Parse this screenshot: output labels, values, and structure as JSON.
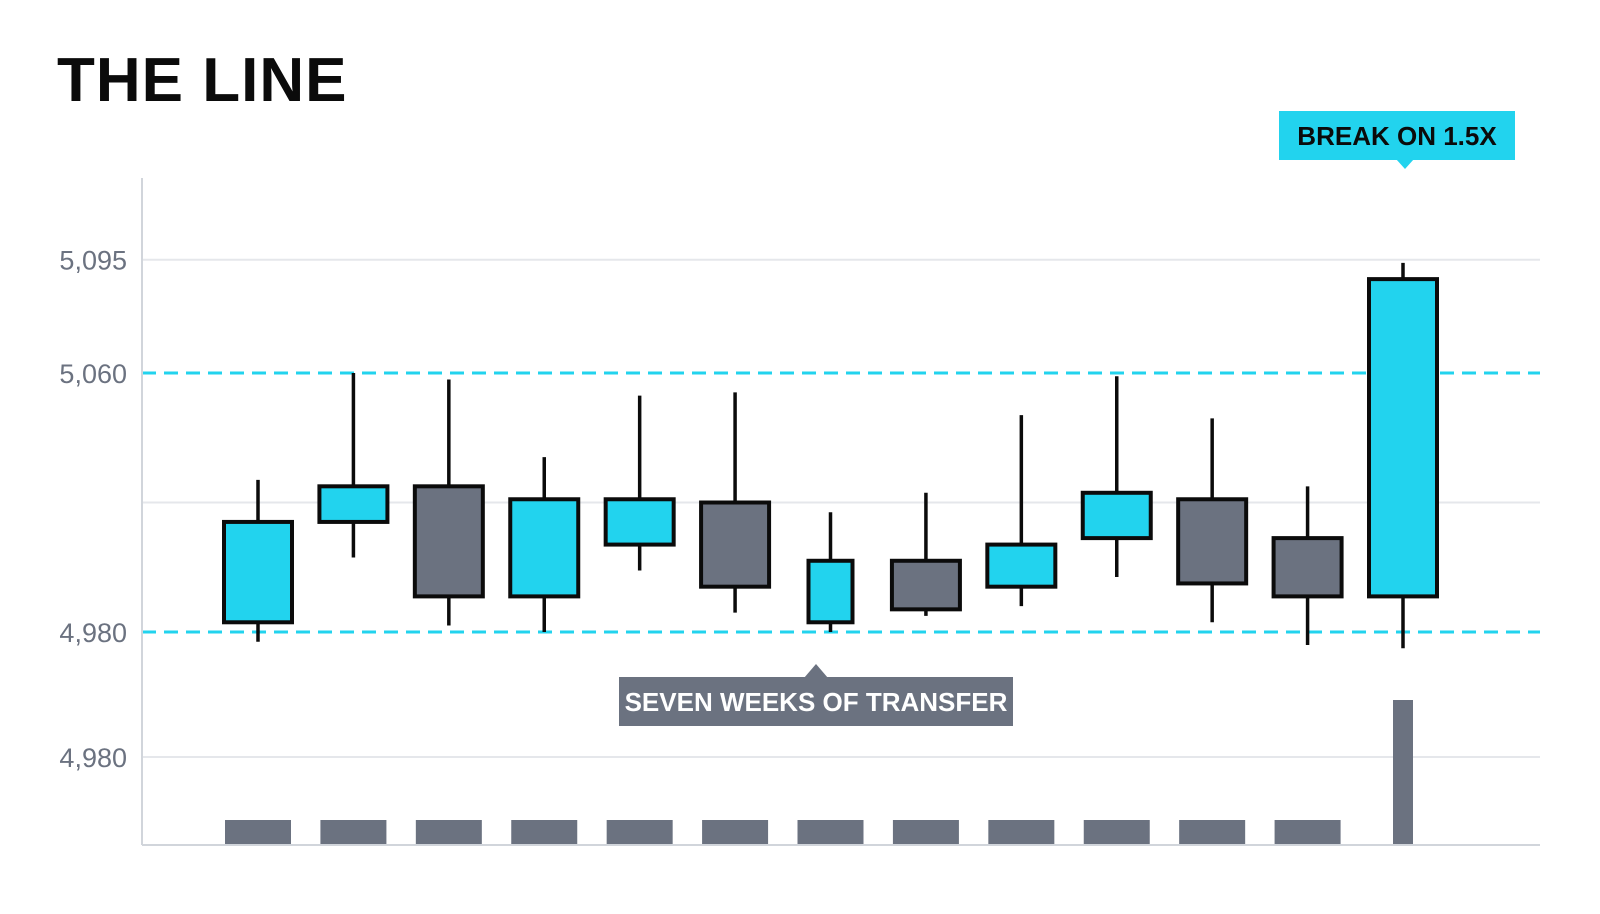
{
  "title": "THE LINE",
  "colors": {
    "up": "#22d3ee",
    "down": "#6b7280",
    "outline": "#0b0b0b",
    "grid": "#e5e7eb",
    "axis": "#d1d5db",
    "level_line": "#22d3ee",
    "volume": "#6b7280",
    "callout_top_bg": "#22d3ee",
    "callout_top_text": "#0b0b0b",
    "callout_bottom_bg": "#6b7280",
    "callout_bottom_text": "#ffffff"
  },
  "chart_data": {
    "type": "candlestick",
    "title": "THE LINE",
    "ylim": [
      4968,
      5098
    ],
    "y_ticks": [
      {
        "value": 5095,
        "label": "5,095"
      },
      {
        "value": 5060,
        "label": "5,060"
      },
      {
        "value": 4980,
        "label": "4,980"
      }
    ],
    "volume_axis_label": "4,980",
    "grid": true,
    "levels": [
      5060,
      4980
    ],
    "candles": [
      {
        "open": 4983,
        "high": 5027,
        "low": 4977,
        "close": 5014
      },
      {
        "open": 5014,
        "high": 5060,
        "low": 5003,
        "close": 5025
      },
      {
        "open": 5025,
        "high": 5058,
        "low": 4982,
        "close": 4991
      },
      {
        "open": 4991,
        "high": 5034,
        "low": 4980,
        "close": 5021
      },
      {
        "open": 5007,
        "high": 5053,
        "low": 4999,
        "close": 5021
      },
      {
        "open": 5020,
        "high": 5054,
        "low": 4986,
        "close": 4994
      },
      {
        "open": 4983,
        "high": 5017,
        "low": 4980,
        "close": 5002
      },
      {
        "open": 5002,
        "high": 5023,
        "low": 4985,
        "close": 4987
      },
      {
        "open": 4994,
        "high": 5047,
        "low": 4988,
        "close": 5007
      },
      {
        "open": 5009,
        "high": 5059,
        "low": 4997,
        "close": 5023
      },
      {
        "open": 5021,
        "high": 5046,
        "low": 4983,
        "close": 4995
      },
      {
        "open": 5009,
        "high": 5025,
        "low": 4976,
        "close": 4991
      },
      {
        "open": 4991,
        "high": 5094,
        "low": 4975,
        "close": 5089
      }
    ],
    "volume": [
      1,
      1,
      1,
      1,
      1,
      1,
      1,
      1,
      1,
      1,
      1,
      1,
      6
    ]
  },
  "annotations": {
    "breakout": "BREAK ON 1.5X",
    "range": "SEVEN WEEKS OF TRANSFER"
  }
}
